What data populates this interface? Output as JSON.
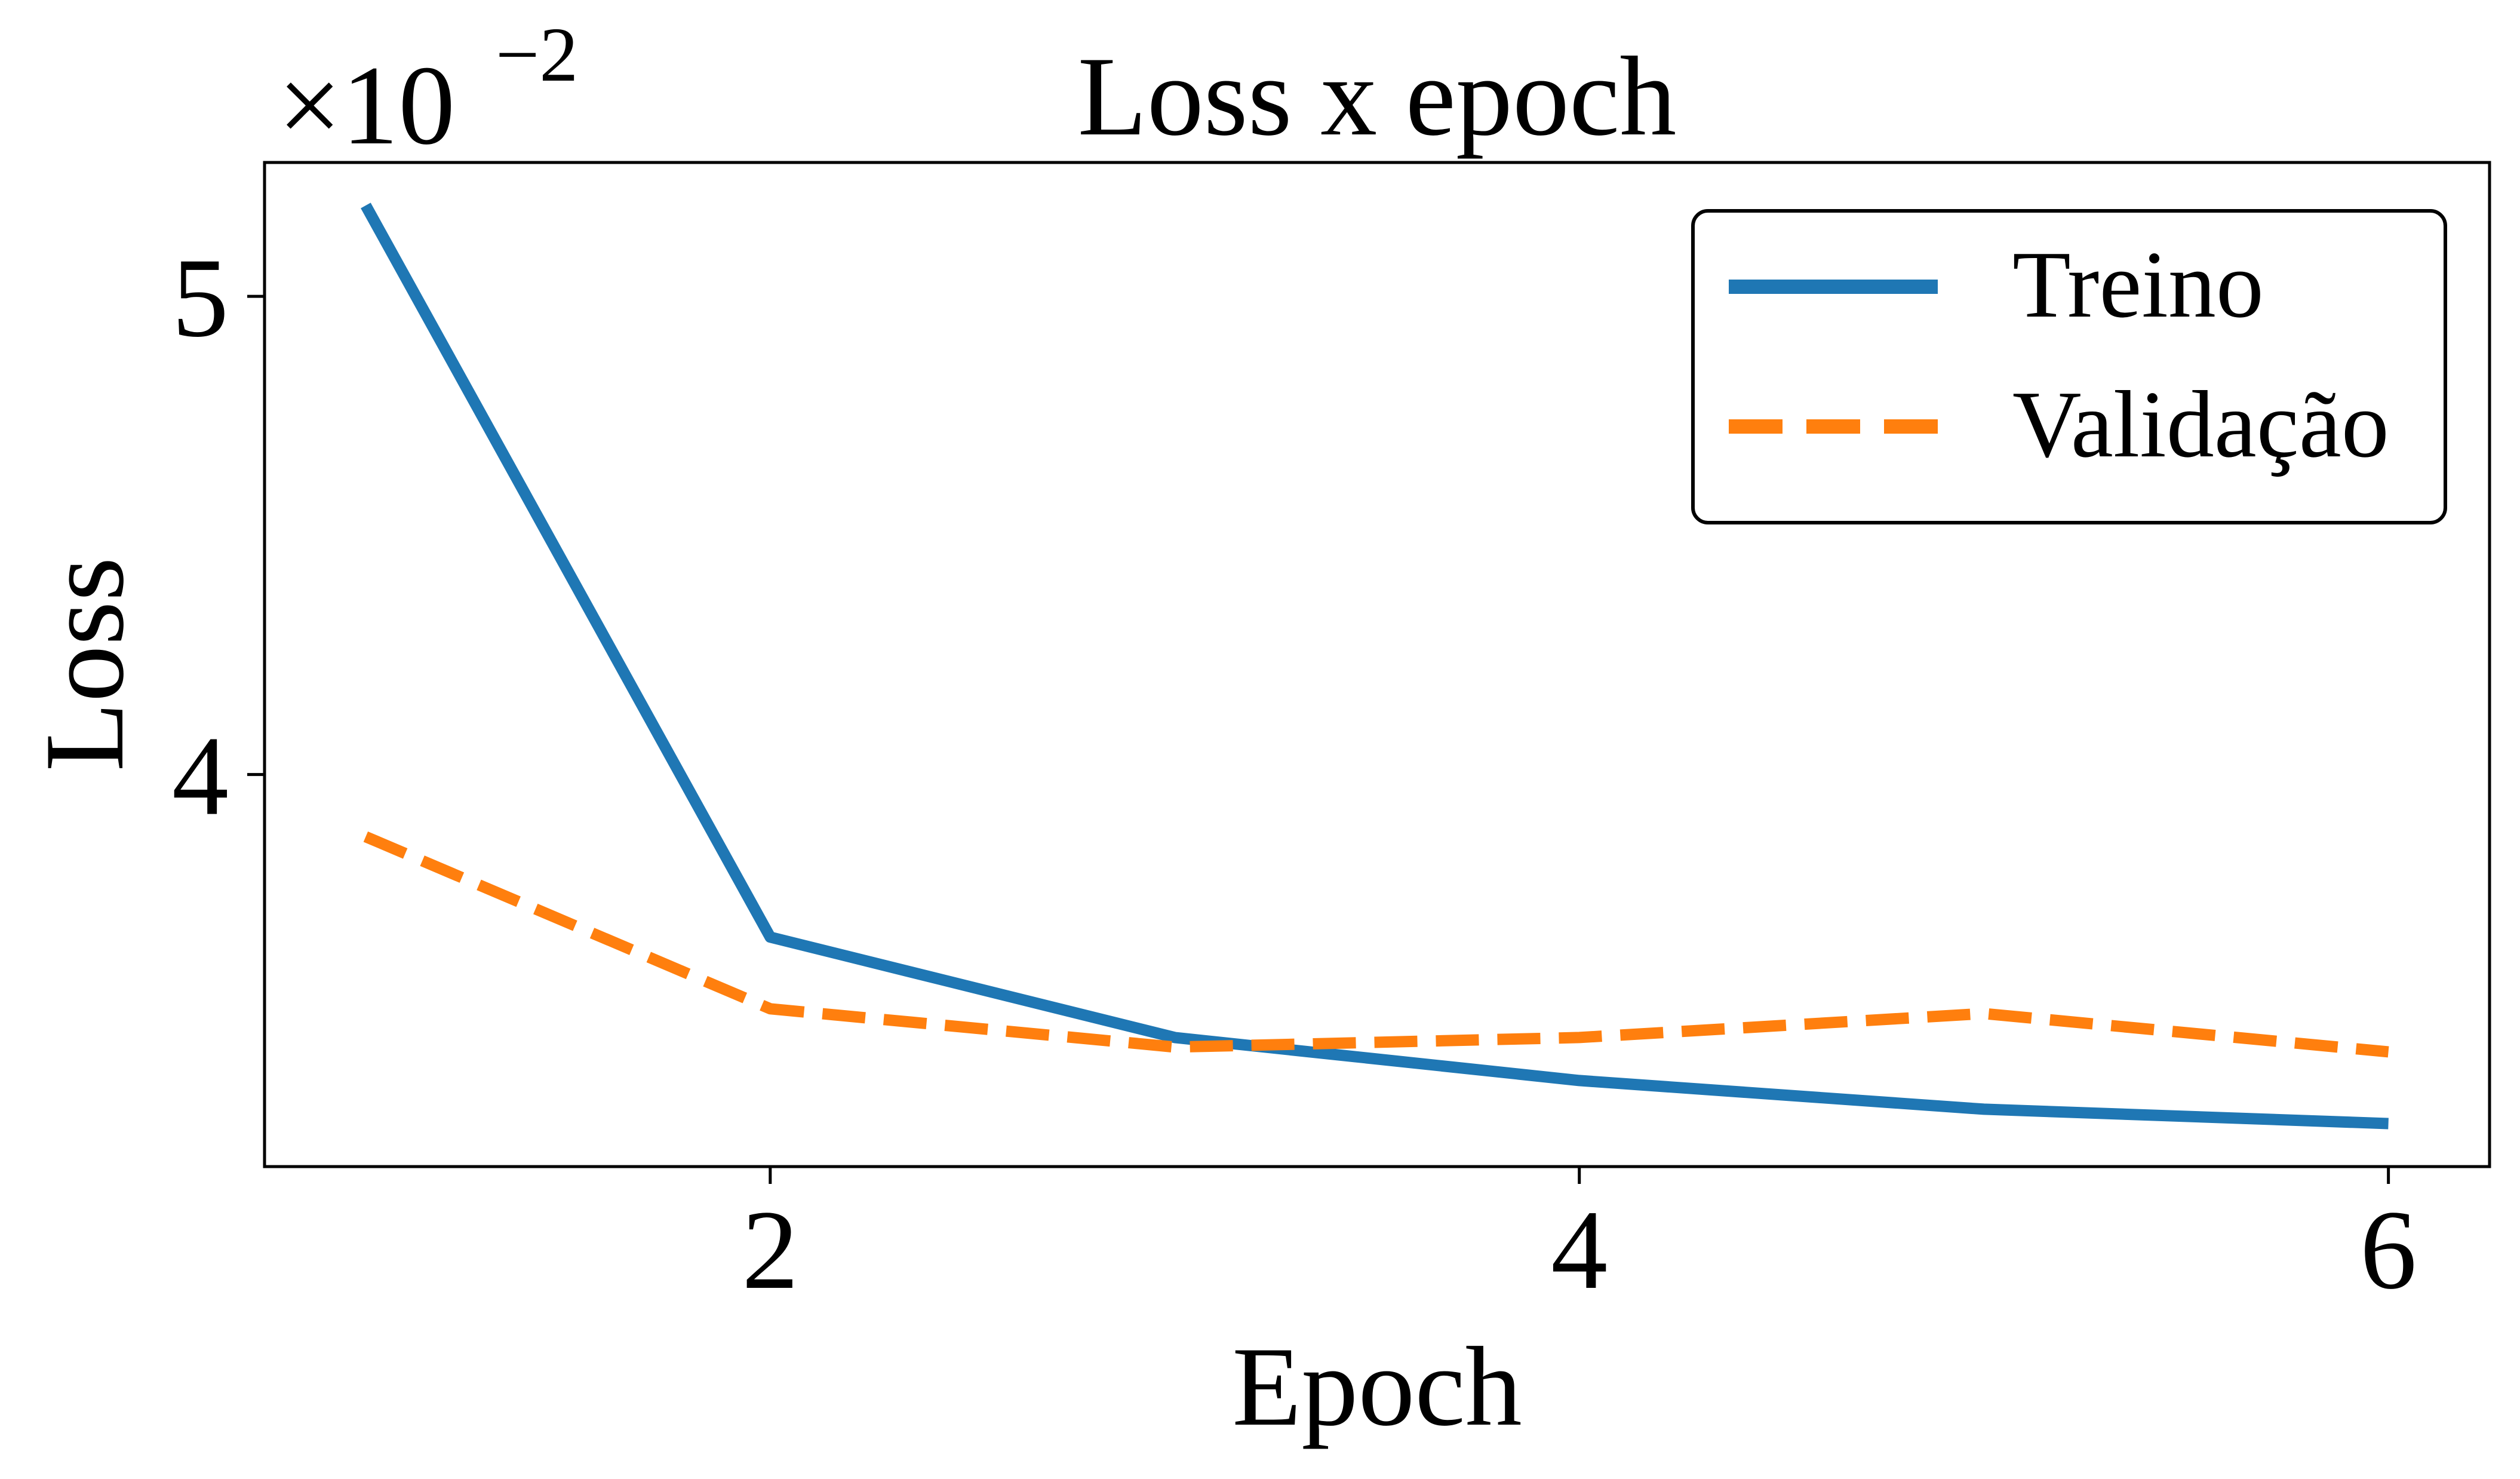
{
  "chart_data": {
    "type": "line",
    "title": "Loss x epoch",
    "xlabel": "Epoch",
    "ylabel": "Loss",
    "offset_label": {
      "base": "×10",
      "exponent": "−2"
    },
    "x_ticks": [
      2,
      4,
      6
    ],
    "x_tick_labels": [
      "2",
      "4",
      "6"
    ],
    "y_ticks": [
      4,
      5
    ],
    "y_tick_labels": [
      "4",
      "5"
    ],
    "xlim": [
      0.75,
      6.25
    ],
    "ylim": [
      3.18,
      5.28
    ],
    "grid": false,
    "legend_position": "top-right",
    "series": [
      {
        "name": "Treino",
        "x": [
          1,
          2,
          3,
          4,
          5,
          6
        ],
        "values": [
          5.19,
          3.66,
          3.45,
          3.36,
          3.3,
          3.27
        ],
        "color": "#1f77b4",
        "style": "solid"
      },
      {
        "name": "Validação",
        "x": [
          1,
          2,
          3,
          4,
          5,
          6
        ],
        "values": [
          3.87,
          3.51,
          3.43,
          3.45,
          3.5,
          3.42
        ],
        "color": "#ff7f0e",
        "style": "dashed"
      }
    ]
  }
}
